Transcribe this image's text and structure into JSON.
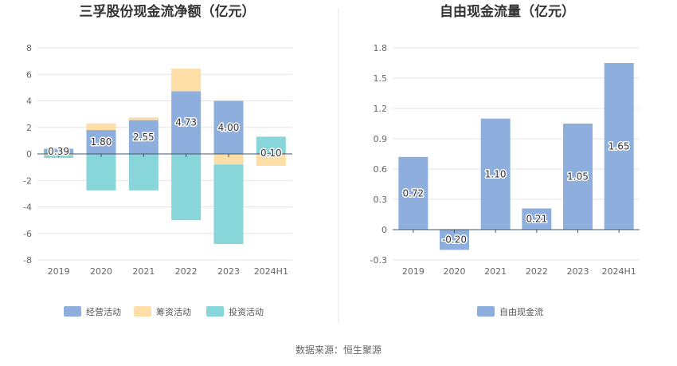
{
  "colors": {
    "operating": "#8eaedd",
    "financing": "#fddea7",
    "investing": "#88d6d9",
    "free_cf": "#8eaedd",
    "grid": "#e3e3e3",
    "zero_line": "#445566",
    "divider": "#e8e8e8"
  },
  "source_text": "数据来源：恒生聚源",
  "chart_data": [
    {
      "type": "bar",
      "stacked": true,
      "title": "三孚股份现金流净额（亿元）",
      "categories": [
        "2019",
        "2020",
        "2021",
        "2022",
        "2023",
        "2024H1"
      ],
      "ylim": [
        -8,
        8
      ],
      "yticks": [
        "8",
        "6",
        "4",
        "2",
        "0",
        "-2",
        "-4",
        "-6",
        "-8"
      ],
      "ytick_values": [
        8,
        6,
        4,
        2,
        0,
        -2,
        -4,
        -6,
        -8
      ],
      "series": [
        {
          "name": "经营活动",
          "color_key": "operating",
          "values": [
            0.39,
            1.8,
            2.55,
            4.73,
            4.0,
            0.1
          ],
          "labels": [
            "0.39",
            "1.80",
            "2.55",
            "4.73",
            "4.00",
            "0.10"
          ]
        },
        {
          "name": "筹资活动",
          "color_key": "financing",
          "values": [
            -0.1,
            0.5,
            0.2,
            1.7,
            -0.8,
            -0.9
          ]
        },
        {
          "name": "投资活动",
          "color_key": "investing",
          "values": [
            -0.2,
            -2.75,
            -2.75,
            -5.0,
            -6.0,
            1.2
          ]
        }
      ],
      "legend": [
        "经营活动",
        "筹资活动",
        "投资活动"
      ]
    },
    {
      "type": "bar",
      "title": "自由现金流量（亿元）",
      "categories": [
        "2019",
        "2020",
        "2021",
        "2022",
        "2023",
        "2024H1"
      ],
      "ylim": [
        -0.3,
        1.8
      ],
      "yticks": [
        "1.8",
        "1.5",
        "1.2",
        "0.9",
        "0.6",
        "0.3",
        "0",
        "-0.3"
      ],
      "ytick_values": [
        1.8,
        1.5,
        1.2,
        0.9,
        0.6,
        0.3,
        0,
        -0.3
      ],
      "series": [
        {
          "name": "自由现金流",
          "color_key": "free_cf",
          "values": [
            0.72,
            -0.2,
            1.1,
            0.21,
            1.05,
            1.65
          ],
          "labels": [
            "0.72",
            "-0.20",
            "1.10",
            "0.21",
            "1.05",
            "1.65"
          ]
        }
      ],
      "legend": [
        "自由现金流"
      ]
    }
  ]
}
